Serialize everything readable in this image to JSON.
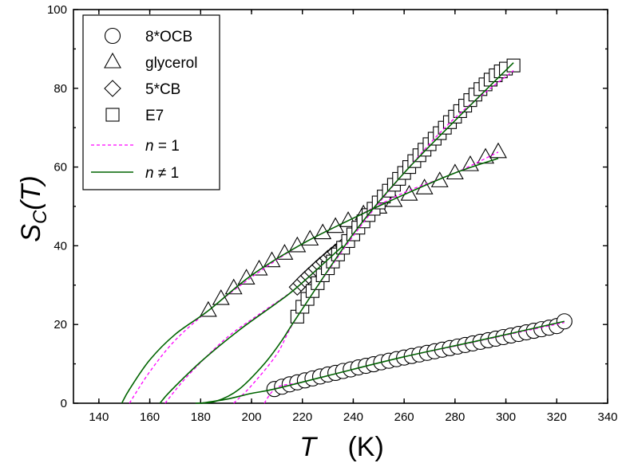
{
  "chart_data": {
    "type": "scatter",
    "title": "",
    "xlabel": {
      "symbol": "T",
      "unit": "(K)"
    },
    "ylabel": {
      "base": "S",
      "sub": "C",
      "arg": "(T)"
    },
    "xlim": [
      130,
      340
    ],
    "ylim": [
      0,
      100
    ],
    "xticks": [
      "140",
      "160",
      "180",
      "200",
      "220",
      "240",
      "260",
      "280",
      "300",
      "320",
      "340"
    ],
    "yticks": [
      "0",
      "20",
      "40",
      "60",
      "80",
      "100"
    ],
    "grid": false,
    "legend_position": "top-left",
    "colors": {
      "dashed_fit": "#ff00ff",
      "solid_fit": "#006400",
      "marker_edge": "#000000"
    },
    "series": [
      {
        "name": "8*OCB",
        "marker": "circle",
        "x": [
          209,
          212,
          215,
          218,
          221,
          224,
          227,
          230,
          233,
          236,
          239,
          242,
          245,
          248,
          251,
          254,
          257,
          260,
          263,
          266,
          269,
          272,
          275,
          278,
          281,
          284,
          287,
          290,
          293,
          296,
          299,
          302,
          305,
          308,
          311,
          314,
          317,
          320,
          323
        ],
        "y": [
          3.6,
          4.2,
          4.8,
          5.3,
          5.8,
          6.3,
          6.8,
          7.3,
          7.7,
          8.2,
          8.6,
          9.1,
          9.5,
          9.9,
          10.4,
          10.8,
          11.2,
          11.6,
          12.0,
          12.4,
          12.8,
          13.2,
          13.6,
          14.0,
          14.4,
          14.8,
          15.2,
          15.6,
          16.0,
          16.4,
          16.8,
          17.2,
          17.6,
          18.0,
          18.4,
          18.8,
          19.2,
          19.6,
          20.8
        ]
      },
      {
        "name": "glycerol",
        "marker": "triangle",
        "x": [
          183,
          188,
          193,
          198,
          203,
          208,
          213,
          218,
          223,
          228,
          233,
          238,
          244,
          250,
          256,
          262,
          268,
          274,
          280,
          286,
          292,
          297
        ],
        "y": [
          23.5,
          26.5,
          29.2,
          31.7,
          34.0,
          36.1,
          38.0,
          39.9,
          41.6,
          43.2,
          44.8,
          46.3,
          48.0,
          49.7,
          51.4,
          53.0,
          54.6,
          56.4,
          58.4,
          60.5,
          62.4,
          63.8
        ]
      },
      {
        "name": "5*CB",
        "marker": "diamond",
        "x": [
          218,
          219.5,
          221,
          222.5,
          224,
          225.5,
          227,
          228.5,
          230,
          231.5,
          233,
          234.5,
          236
        ],
        "y": [
          29.5,
          30.5,
          31.5,
          32.4,
          33.3,
          34.2,
          35.1,
          35.9,
          36.8,
          37.6,
          38.4,
          39.2,
          40.0
        ]
      },
      {
        "name": "E7",
        "marker": "square",
        "x": [
          218,
          220,
          222,
          224,
          226,
          228,
          230,
          232,
          234,
          236,
          238,
          240,
          242,
          244,
          246,
          248,
          250,
          252,
          254,
          256,
          258,
          260,
          262,
          264,
          266,
          268,
          270,
          272,
          274,
          276,
          278,
          280,
          282,
          284,
          286,
          288,
          290,
          292,
          294,
          296,
          298,
          300,
          303
        ],
        "y": [
          22.0,
          24.5,
          26.5,
          28.5,
          30.5,
          32.5,
          34.3,
          36.0,
          37.8,
          39.5,
          41.2,
          42.9,
          44.6,
          46.2,
          47.8,
          49.4,
          51.0,
          52.5,
          54.0,
          55.5,
          57.0,
          58.5,
          60.0,
          61.5,
          63.0,
          64.4,
          65.8,
          67.2,
          68.6,
          70.0,
          71.4,
          72.8,
          74.2,
          75.6,
          77.0,
          78.4,
          79.8,
          81.0,
          82.2,
          83.3,
          84.3,
          85.0,
          85.8
        ]
      }
    ],
    "fits": [
      {
        "name": "n = 1",
        "style": "dashed",
        "color": "#ff00ff",
        "curves": [
          {
            "for": "8*OCB",
            "x": [
              205,
              210,
              220,
              240,
              260,
              280,
              300,
              323
            ],
            "y": [
              0,
              4.0,
              5.4,
              8.6,
              11.8,
              14.5,
              17.3,
              20.5
            ]
          },
          {
            "for": "glycerol",
            "x": [
              152,
              160,
              170,
              183,
              200,
              220,
              240,
              260,
              280,
              297
            ],
            "y": [
              0,
              8,
              16,
              23.5,
              32,
              40.5,
              47.0,
              53.5,
              58.5,
              63.8
            ]
          },
          {
            "for": "5*CB",
            "x": [
              166,
              175,
              190,
              205,
              218,
              236
            ],
            "y": [
              0,
              7,
              16.5,
              23.5,
              29.5,
              40.0
            ]
          },
          {
            "for": "E7",
            "x": [
              193,
              200,
              210,
              218,
              240,
              260,
              280,
              303
            ],
            "y": [
              0,
              4.5,
              12.5,
              22.0,
              42.5,
              58.5,
              72.5,
              84.5
            ]
          }
        ]
      },
      {
        "name": "n ≠ 1",
        "style": "solid",
        "color": "#006400",
        "curves": [
          {
            "for": "8*OCB",
            "x": [
              180,
              190,
              200,
              209,
              230,
              260,
              290,
              323
            ],
            "y": [
              0,
              1.0,
              2.5,
              3.6,
              7.0,
              11.8,
              16.0,
              20.8
            ]
          },
          {
            "for": "glycerol",
            "x": [
              149,
              152,
              160,
              170,
              183,
              200,
              220,
              240,
              260,
              280,
              297
            ],
            "y": [
              0,
              3.5,
              11,
              17.5,
              23.5,
              32.5,
              40.5,
              47.0,
              53.0,
              58.5,
              62.2
            ]
          },
          {
            "for": "5*CB",
            "x": [
              164,
              168,
              180,
              195,
              210,
              218,
              236
            ],
            "y": [
              0,
              3,
              10.5,
              18.5,
              25.5,
              29.5,
              40.0
            ]
          },
          {
            "for": "E7",
            "x": [
              178,
              186,
              195,
              205,
              212,
              218,
              240,
              260,
              280,
              303
            ],
            "y": [
              0,
              0.5,
              3.5,
              10,
              16.0,
              22.0,
              43.0,
              58.5,
              71.8,
              86.5
            ]
          }
        ]
      }
    ],
    "legend": [
      {
        "label": "8*OCB",
        "kind": "circle"
      },
      {
        "label": "glycerol",
        "kind": "triangle"
      },
      {
        "label": "5*CB",
        "kind": "diamond"
      },
      {
        "label": "E7",
        "kind": "square"
      },
      {
        "label_italic": "n",
        "label_rest": " = 1",
        "kind": "dashed"
      },
      {
        "label_italic": "n",
        "label_rest": " ≠ 1",
        "kind": "solid"
      }
    ]
  }
}
